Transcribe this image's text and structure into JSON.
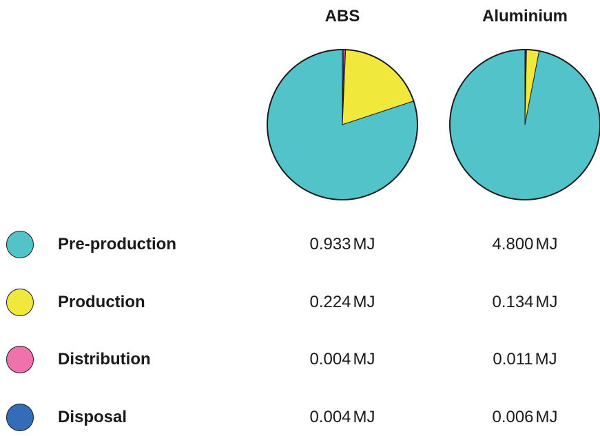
{
  "chart_data": [
    {
      "type": "pie",
      "title": "ABS",
      "labels": [
        "Pre-production",
        "Production",
        "Distribution",
        "Disposal"
      ],
      "values": [
        0.933,
        0.224,
        0.004,
        0.004
      ],
      "unit": "MJ",
      "value_labels": [
        "0.933",
        "0.224",
        "0.004",
        "0.004"
      ]
    },
    {
      "type": "pie",
      "title": "Aluminium",
      "labels": [
        "Pre-production",
        "Production",
        "Distribution",
        "Disposal"
      ],
      "values": [
        4.8,
        0.134,
        0.011,
        0.006
      ],
      "unit": "MJ",
      "value_labels": [
        "4.800",
        "0.134",
        "0.011",
        "0.006"
      ]
    }
  ],
  "legend": [
    {
      "label": "Pre-production",
      "color": "#52c3c8"
    },
    {
      "label": "Production",
      "color": "#f0e93c"
    },
    {
      "label": "Distribution",
      "color": "#f072ad"
    },
    {
      "label": "Disposal",
      "color": "#336cb8"
    }
  ]
}
